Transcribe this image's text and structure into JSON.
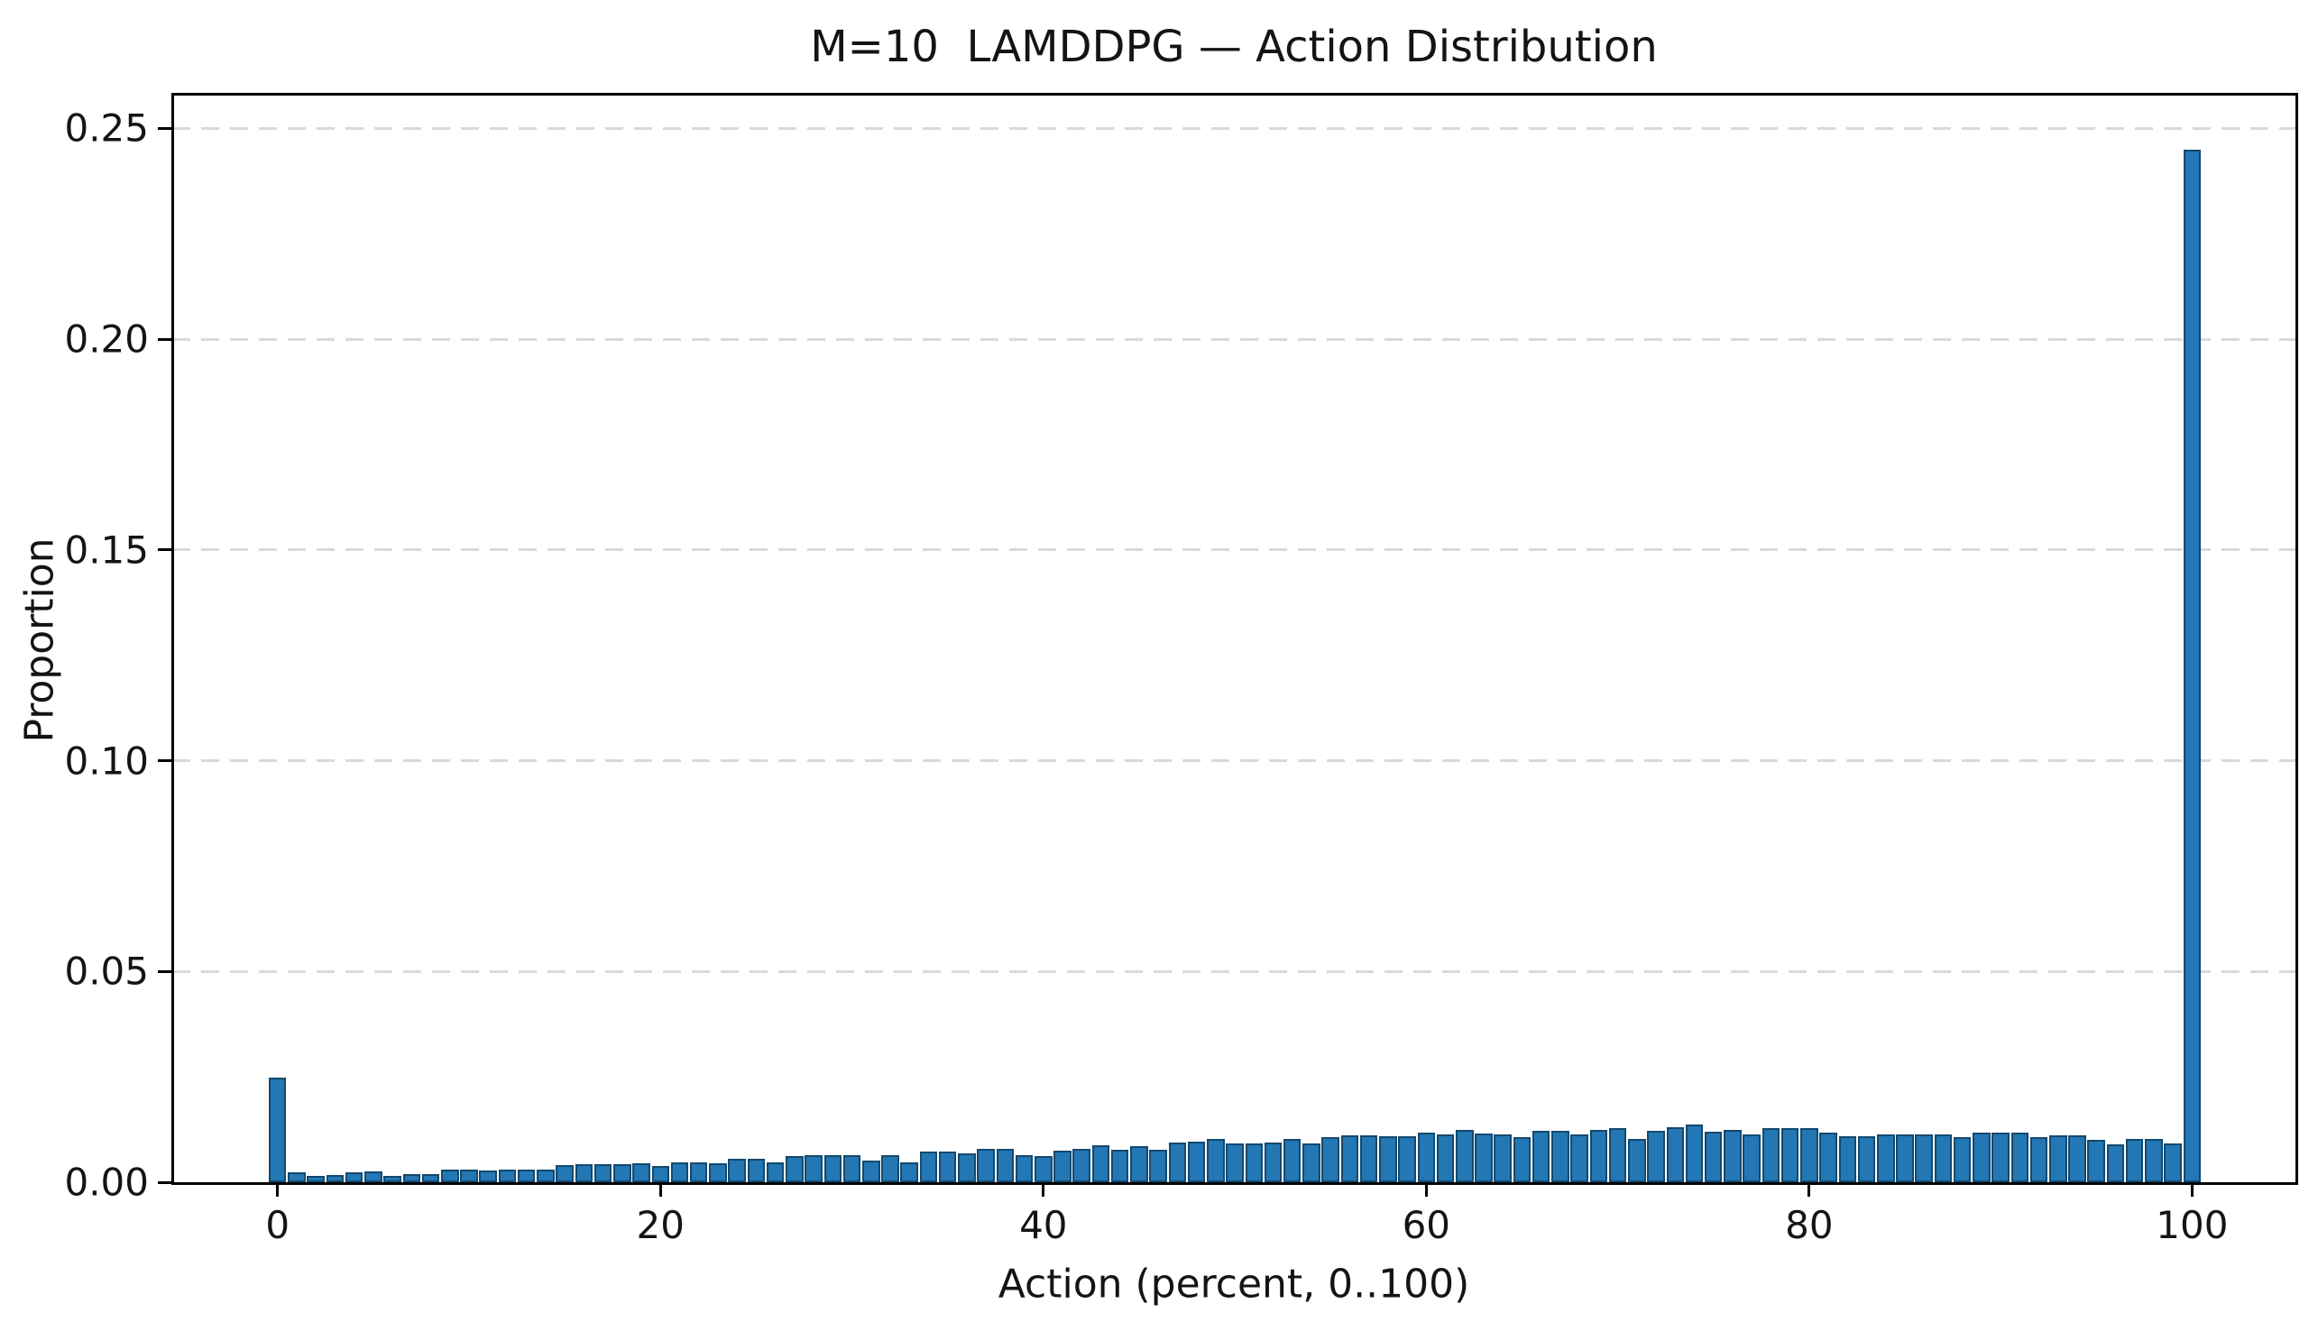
{
  "chart_data": {
    "type": "bar",
    "subtype": "histogram",
    "title": "M=10  LAMDDPG — Action Distribution",
    "xlabel": "Action (percent, 0..100)",
    "ylabel": "Proportion",
    "x": [
      0,
      1,
      2,
      3,
      4,
      5,
      6,
      7,
      8,
      9,
      10,
      11,
      12,
      13,
      14,
      15,
      16,
      17,
      18,
      19,
      20,
      21,
      22,
      23,
      24,
      25,
      26,
      27,
      28,
      29,
      30,
      31,
      32,
      33,
      34,
      35,
      36,
      37,
      38,
      39,
      40,
      41,
      42,
      43,
      44,
      45,
      46,
      47,
      48,
      49,
      50,
      51,
      52,
      53,
      54,
      55,
      56,
      57,
      58,
      59,
      60,
      61,
      62,
      63,
      64,
      65,
      66,
      67,
      68,
      69,
      70,
      71,
      72,
      73,
      74,
      75,
      76,
      77,
      78,
      79,
      80,
      81,
      82,
      83,
      84,
      85,
      86,
      87,
      88,
      89,
      90,
      91,
      92,
      93,
      94,
      95,
      96,
      97,
      98,
      99,
      100
    ],
    "values": [
      0.0248,
      0.0024,
      0.0014,
      0.0018,
      0.0024,
      0.0025,
      0.0015,
      0.002,
      0.002,
      0.0031,
      0.0031,
      0.0028,
      0.003,
      0.0031,
      0.0031,
      0.004,
      0.0042,
      0.0042,
      0.0043,
      0.0045,
      0.0039,
      0.0046,
      0.0046,
      0.0044,
      0.0055,
      0.0056,
      0.0046,
      0.0063,
      0.0065,
      0.0065,
      0.0065,
      0.0051,
      0.0065,
      0.0047,
      0.0073,
      0.0073,
      0.0069,
      0.0079,
      0.0079,
      0.0065,
      0.0063,
      0.0074,
      0.008,
      0.0087,
      0.0076,
      0.0085,
      0.0076,
      0.0094,
      0.0096,
      0.0102,
      0.0093,
      0.0093,
      0.0095,
      0.0102,
      0.0093,
      0.0107,
      0.0112,
      0.0112,
      0.0109,
      0.0109,
      0.0118,
      0.0113,
      0.0124,
      0.0116,
      0.0113,
      0.0106,
      0.0122,
      0.0122,
      0.0113,
      0.0124,
      0.0129,
      0.0103,
      0.0122,
      0.0131,
      0.0136,
      0.012,
      0.0124,
      0.0113,
      0.0129,
      0.0129,
      0.0129,
      0.0118,
      0.0109,
      0.0109,
      0.0113,
      0.0114,
      0.0114,
      0.0114,
      0.0106,
      0.0118,
      0.0118,
      0.0118,
      0.0107,
      0.0111,
      0.0111,
      0.01,
      0.009,
      0.0102,
      0.0102,
      0.0091,
      0.245
    ],
    "xticks": {
      "values": [
        0,
        20,
        40,
        60,
        80,
        100
      ],
      "labels": [
        "0",
        "20",
        "40",
        "60",
        "80",
        "100"
      ]
    },
    "yticks": {
      "values": [
        0,
        0.05,
        0.1,
        0.15,
        0.2,
        0.25
      ],
      "labels": [
        "0.00",
        "0.05",
        "0.10",
        "0.15",
        "0.20",
        "0.25"
      ]
    },
    "xlim": [
      -5.5,
      105.4
    ],
    "ylim": [
      0,
      0.258
    ],
    "bar_width_units": 0.92,
    "grid": "horizontal-dashed",
    "legend": null,
    "colors": {
      "bar_fill": "#2377b4",
      "bar_edge": "#14496e",
      "grid": "#d9d9d9",
      "spine": "#000000",
      "text": "#141414",
      "background": "#ffffff"
    }
  }
}
